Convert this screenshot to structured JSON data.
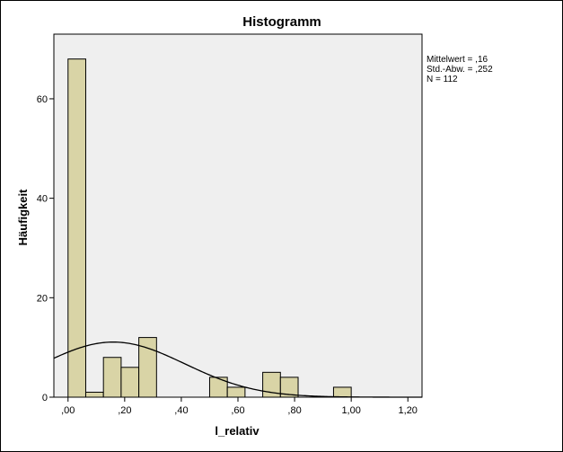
{
  "chart_data": {
    "type": "bar",
    "title": "Histogramm",
    "xlabel": "l_relativ",
    "ylabel": "Häufigkeit",
    "xlim": [
      -0.05,
      1.25
    ],
    "ylim": [
      0,
      73
    ],
    "bin_width": 0.0625,
    "bins": [
      {
        "start": 0.0,
        "end": 0.0625,
        "count": 68
      },
      {
        "start": 0.0625,
        "end": 0.125,
        "count": 1
      },
      {
        "start": 0.125,
        "end": 0.1875,
        "count": 8
      },
      {
        "start": 0.1875,
        "end": 0.25,
        "count": 6
      },
      {
        "start": 0.25,
        "end": 0.3125,
        "count": 12
      },
      {
        "start": 0.3125,
        "end": 0.375,
        "count": 0
      },
      {
        "start": 0.375,
        "end": 0.4375,
        "count": 0
      },
      {
        "start": 0.4375,
        "end": 0.5,
        "count": 0
      },
      {
        "start": 0.5,
        "end": 0.5625,
        "count": 4
      },
      {
        "start": 0.5625,
        "end": 0.625,
        "count": 2
      },
      {
        "start": 0.625,
        "end": 0.6875,
        "count": 0
      },
      {
        "start": 0.6875,
        "end": 0.75,
        "count": 5
      },
      {
        "start": 0.75,
        "end": 0.8125,
        "count": 4
      },
      {
        "start": 0.8125,
        "end": 0.875,
        "count": 0
      },
      {
        "start": 0.875,
        "end": 0.9375,
        "count": 0
      },
      {
        "start": 0.9375,
        "end": 1.0,
        "count": 2
      }
    ],
    "x_ticks": [
      {
        "value": 0.0,
        "label": ",00"
      },
      {
        "value": 0.2,
        "label": ",20"
      },
      {
        "value": 0.4,
        "label": ",40"
      },
      {
        "value": 0.6,
        "label": ",60"
      },
      {
        "value": 0.8,
        "label": ",80"
      },
      {
        "value": 1.0,
        "label": "1,00"
      },
      {
        "value": 1.2,
        "label": "1,20"
      }
    ],
    "y_ticks": [
      {
        "value": 0,
        "label": "0"
      },
      {
        "value": 20,
        "label": "20"
      },
      {
        "value": 40,
        "label": "40"
      },
      {
        "value": 60,
        "label": "60"
      }
    ],
    "normal_curve": {
      "mean": 0.16,
      "sd": 0.252,
      "n": 112
    },
    "stats": {
      "mean_text": "Mittelwert = ,16",
      "sd_text": "Std.-Abw. = ,252",
      "n_text": "N = 112"
    },
    "grid": false,
    "legend": "right",
    "colors": {
      "bar_fill": "#d9d4a6",
      "bar_stroke": "#000000",
      "plot_bg": "#efefef",
      "curve": "#000000"
    }
  }
}
